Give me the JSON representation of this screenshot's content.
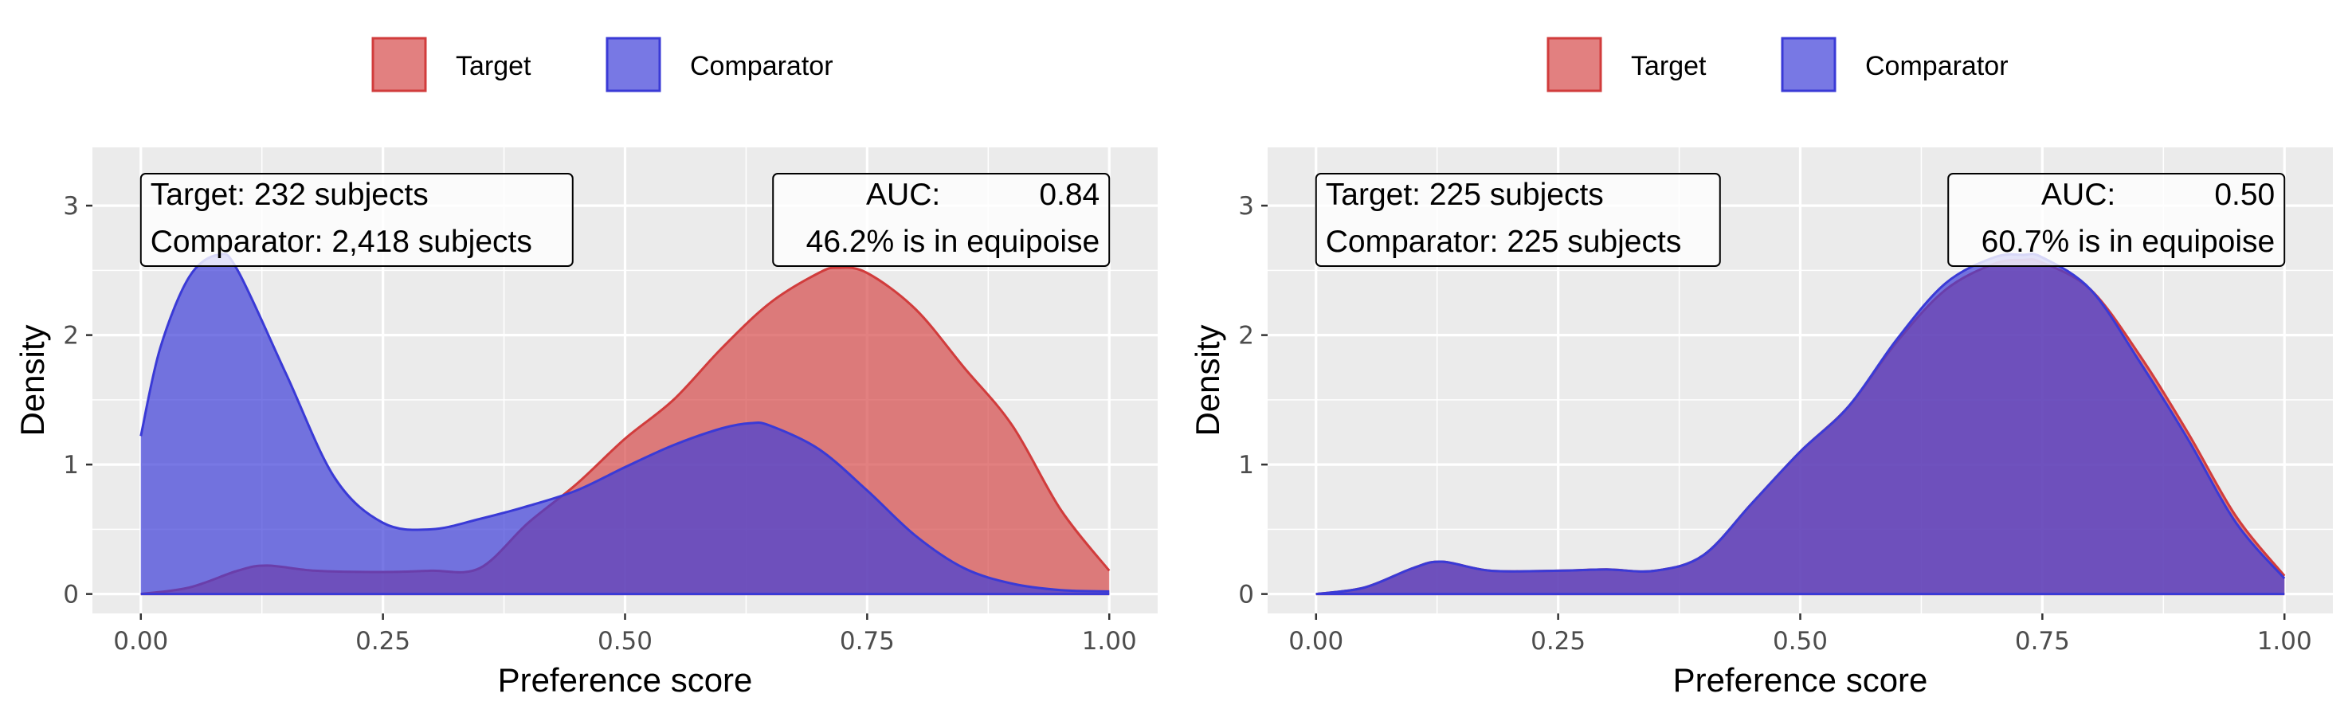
{
  "legend": {
    "items": [
      {
        "label": "Target",
        "fill": "#d64a4a",
        "stroke": "#d13c3c"
      },
      {
        "label": "Comparator",
        "fill": "#3f3fd9",
        "stroke": "#3a3ad6"
      }
    ]
  },
  "colors": {
    "panel_background": "#ebebeb",
    "gridline": "#ffffff",
    "target_fill": "#d64a4a",
    "comparator_fill": "#3f3fd9",
    "fill_opacity": 0.7
  },
  "chart_data": [
    {
      "type": "area",
      "xlabel": "Preference score",
      "ylabel": "Density",
      "xlim": [
        -0.05,
        1.05
      ],
      "ylim": [
        -0.15,
        3.45
      ],
      "x_ticks": [
        "0.00",
        "0.25",
        "0.50",
        "0.75",
        "1.00"
      ],
      "y_ticks": [
        "0",
        "1",
        "2",
        "3"
      ],
      "grid": true,
      "legend_position": "top",
      "annotations": {
        "counts_line1": "Target: 232 subjects",
        "counts_line2": "Comparator: 2,418 subjects",
        "auc_label": "AUC:",
        "auc_value": "0.84",
        "equipoise": "46.2% is in equipoise"
      },
      "series": [
        {
          "name": "Target",
          "x": [
            0,
            0.05,
            0.1,
            0.13,
            0.18,
            0.25,
            0.3,
            0.35,
            0.4,
            0.45,
            0.5,
            0.55,
            0.6,
            0.65,
            0.7,
            0.72,
            0.75,
            0.8,
            0.85,
            0.9,
            0.95,
            1.0
          ],
          "y": [
            0,
            0.05,
            0.18,
            0.22,
            0.18,
            0.17,
            0.18,
            0.2,
            0.55,
            0.85,
            1.2,
            1.5,
            1.9,
            2.25,
            2.48,
            2.52,
            2.48,
            2.2,
            1.75,
            1.3,
            0.65,
            0.18
          ]
        },
        {
          "name": "Comparator",
          "x": [
            0,
            0.02,
            0.05,
            0.08,
            0.1,
            0.15,
            0.2,
            0.25,
            0.3,
            0.35,
            0.4,
            0.45,
            0.5,
            0.55,
            0.6,
            0.63,
            0.65,
            0.7,
            0.75,
            0.8,
            0.85,
            0.9,
            0.95,
            1.0
          ],
          "y": [
            1.22,
            1.9,
            2.45,
            2.62,
            2.5,
            1.7,
            0.9,
            0.55,
            0.5,
            0.58,
            0.68,
            0.8,
            0.98,
            1.15,
            1.28,
            1.32,
            1.3,
            1.12,
            0.8,
            0.45,
            0.2,
            0.08,
            0.03,
            0.02
          ]
        }
      ]
    },
    {
      "type": "area",
      "xlabel": "Preference score",
      "ylabel": "Density",
      "xlim": [
        -0.05,
        1.05
      ],
      "ylim": [
        -0.15,
        3.45
      ],
      "x_ticks": [
        "0.00",
        "0.25",
        "0.50",
        "0.75",
        "1.00"
      ],
      "y_ticks": [
        "0",
        "1",
        "2",
        "3"
      ],
      "grid": true,
      "legend_position": "top",
      "annotations": {
        "counts_line1": "Target: 225 subjects",
        "counts_line2": "Comparator: 225 subjects",
        "auc_label": "AUC:",
        "auc_value": "0.50",
        "equipoise": "60.7% is in equipoise"
      },
      "series": [
        {
          "name": "Target",
          "x": [
            0,
            0.05,
            0.1,
            0.13,
            0.18,
            0.25,
            0.3,
            0.35,
            0.4,
            0.45,
            0.5,
            0.55,
            0.6,
            0.65,
            0.7,
            0.73,
            0.75,
            0.8,
            0.85,
            0.9,
            0.95,
            1.0
          ],
          "y": [
            0,
            0.05,
            0.2,
            0.25,
            0.18,
            0.18,
            0.19,
            0.18,
            0.3,
            0.7,
            1.1,
            1.45,
            1.95,
            2.35,
            2.55,
            2.58,
            2.56,
            2.35,
            1.85,
            1.25,
            0.6,
            0.14
          ]
        },
        {
          "name": "Comparator",
          "x": [
            0,
            0.05,
            0.1,
            0.13,
            0.18,
            0.25,
            0.3,
            0.35,
            0.4,
            0.45,
            0.5,
            0.55,
            0.6,
            0.65,
            0.7,
            0.73,
            0.75,
            0.8,
            0.85,
            0.9,
            0.95,
            1.0
          ],
          "y": [
            0,
            0.05,
            0.2,
            0.25,
            0.18,
            0.18,
            0.19,
            0.18,
            0.3,
            0.7,
            1.1,
            1.45,
            1.97,
            2.4,
            2.6,
            2.62,
            2.6,
            2.35,
            1.8,
            1.2,
            0.55,
            0.12
          ]
        }
      ]
    }
  ]
}
